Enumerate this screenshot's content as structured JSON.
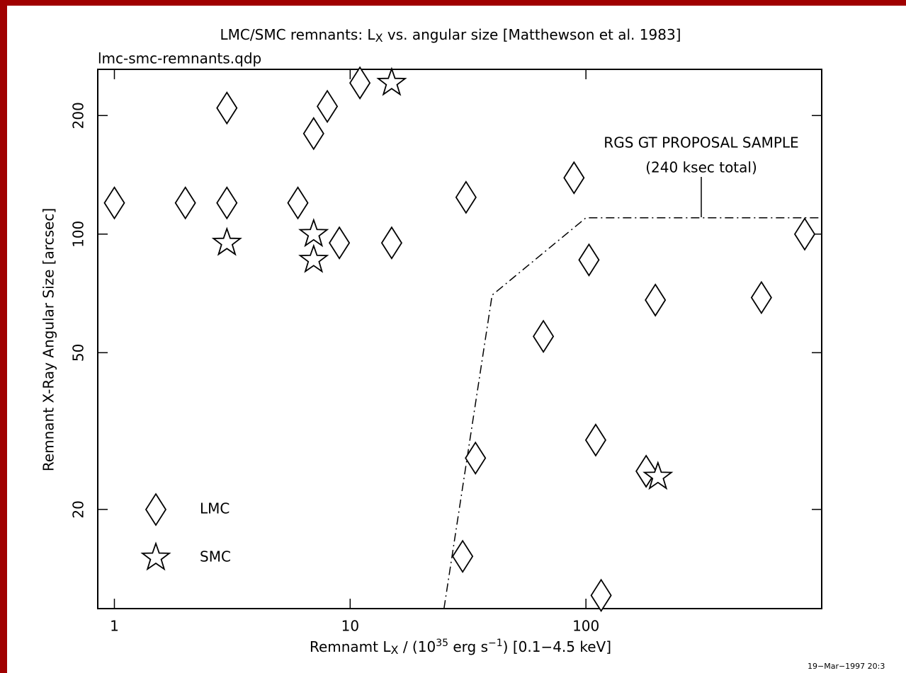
{
  "chart_data": {
    "type": "scatter",
    "title": [
      "LMC/SMC remnants: L",
      "X",
      " vs. angular size [Matthewson et al. 1983]"
    ],
    "subtitle": "lmc-smc-remnants.qdp",
    "xlabel": [
      "Remnamt L",
      "X",
      " / (10",
      "35",
      " erg s",
      "−1",
      ") [0.1−4.5 keV]"
    ],
    "ylabel": "Remnant X-Ray Angular Size [arcsec]",
    "footer": "19−Mar−1997 20:3",
    "xscale": "log",
    "yscale": "log",
    "xlim": [
      0.85,
      1000
    ],
    "ylim": [
      11.2,
      262
    ],
    "xticks": [
      1,
      10,
      100
    ],
    "yticks": [
      20,
      50,
      100,
      200
    ],
    "legend": "bottom-left",
    "series": [
      {
        "name": "LMC",
        "marker": "diamond",
        "color": "#000000",
        "x": [
          1,
          2,
          3,
          6,
          3,
          7,
          8,
          11,
          9,
          15,
          31,
          89,
          103,
          66,
          197,
          555,
          847,
          34,
          110,
          180,
          30,
          116
        ],
        "values": [
          120,
          120,
          120,
          120,
          209,
          180,
          211,
          242,
          95,
          95,
          124,
          139,
          86,
          55,
          68,
          69,
          100,
          27,
          30,
          25,
          15.2,
          12.1
        ]
      },
      {
        "name": "SMC",
        "marker": "star",
        "color": "#000000",
        "x": [
          3,
          7,
          7,
          15,
          202
        ],
        "values": [
          95,
          100,
          86,
          242,
          24.2
        ]
      }
    ],
    "boundary": {
      "x": [
        25,
        40,
        100,
        1000
      ],
      "values": [
        11.2,
        70,
        110,
        110
      ],
      "color": "#000000"
    },
    "annotation": [
      "RGS GT PROPOSAL SAMPLE",
      "(240 ksec total)"
    ]
  }
}
